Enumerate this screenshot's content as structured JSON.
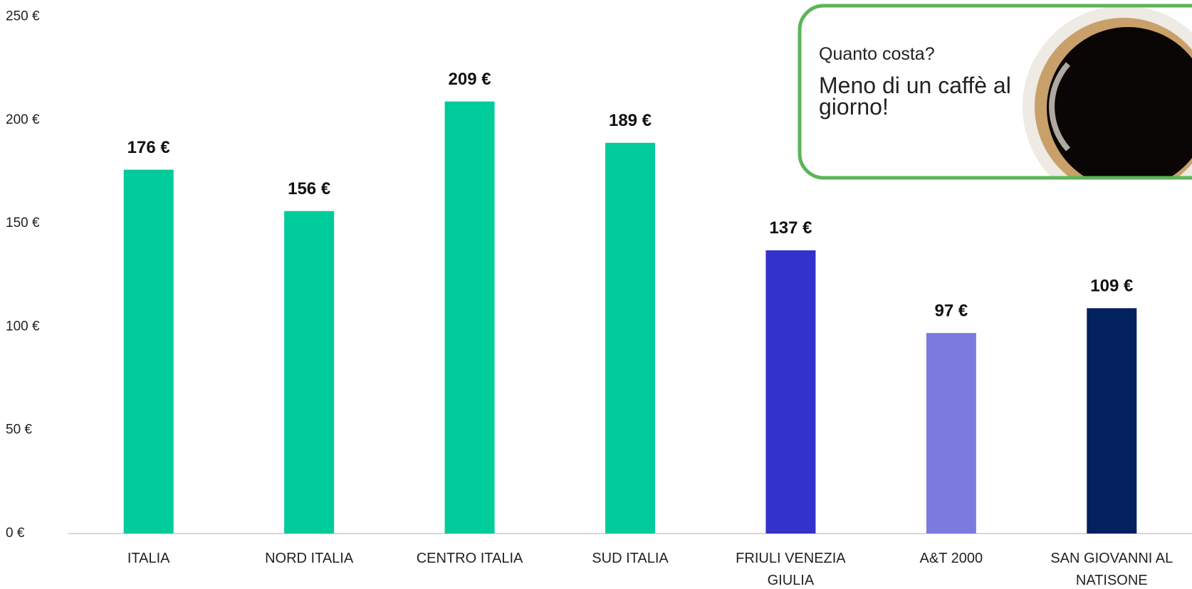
{
  "chart_data": {
    "type": "bar",
    "categories": [
      "ITALIA",
      "NORD ITALIA",
      "CENTRO ITALIA",
      "SUD ITALIA",
      "FRIULI VENEZIA GIULIA",
      "A&T 2000",
      "SAN GIOVANNI AL NATISONE"
    ],
    "values": [
      176,
      156,
      209,
      189,
      137,
      97,
      109
    ],
    "value_labels": [
      "176 €",
      "156 €",
      "209 €",
      "189 €",
      "137 €",
      "97 €",
      "109 €"
    ],
    "colors": [
      "#00cc9b",
      "#00cc9b",
      "#00cc9b",
      "#00cc9b",
      "#3333cc",
      "#7b7bdf",
      "#03215e"
    ],
    "ylim": [
      0,
      250
    ],
    "yticks": [
      {
        "value": 0,
        "label": "0 €"
      },
      {
        "value": 50,
        "label": "50 €"
      },
      {
        "value": 100,
        "label": "100 €"
      },
      {
        "value": 150,
        "label": "150 €"
      },
      {
        "value": 200,
        "label": "200 €"
      },
      {
        "value": 250,
        "label": "250 €"
      }
    ],
    "grid": false,
    "annotations": [
      "Quanto costa?",
      "Meno di un caffè al giorno!"
    ]
  }
}
